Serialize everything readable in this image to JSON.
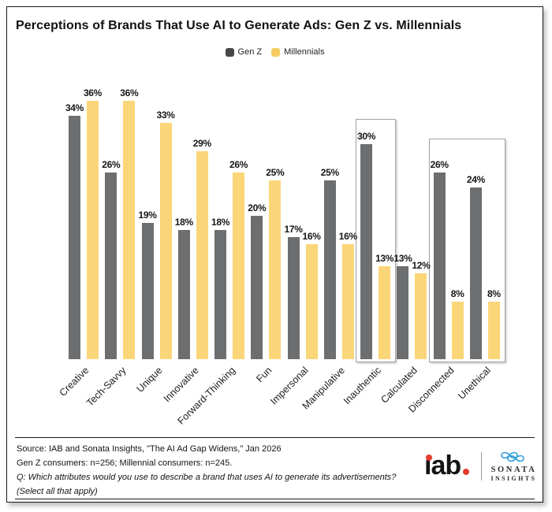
{
  "title": "Perceptions of Brands That Use AI to Generate Ads: Gen Z vs. Millennials",
  "legend": {
    "items": [
      {
        "label": "Gen Z",
        "swatch_color": "#47484a"
      },
      {
        "label": "Millennials",
        "swatch_color": "#f6cc63"
      }
    ]
  },
  "chart_data": {
    "type": "bar",
    "title": "Perceptions of Brands That Use AI to Generate Ads: Gen Z vs. Millennials",
    "categories": [
      "Creative",
      "Tech-Savvy",
      "Unique",
      "Innovative",
      "Forward-Thinking",
      "Fun",
      "Impersonal",
      "Manipulative",
      "Inauthentic",
      "Calculated",
      "Disconnected",
      "Unethical"
    ],
    "series": [
      {
        "name": "Gen Z",
        "color": "#6d6e70",
        "values": [
          34,
          26,
          19,
          18,
          18,
          20,
          17,
          25,
          30,
          13,
          26,
          24
        ]
      },
      {
        "name": "Millennials",
        "color": "#fbd679",
        "values": [
          36,
          36,
          33,
          29,
          26,
          25,
          16,
          16,
          13,
          12,
          8,
          8
        ]
      }
    ],
    "unit": "%",
    "value_labels": true,
    "grid": false,
    "axis_lines": false,
    "legend_position": "top-center",
    "ylim": [
      0,
      38
    ],
    "highlight_boxes": [
      {
        "categories": [
          "Inauthentic"
        ],
        "start_index": 8,
        "end_index": 8
      },
      {
        "categories": [
          "Disconnected",
          "Unethical"
        ],
        "start_index": 10,
        "end_index": 11
      }
    ]
  },
  "footer": {
    "lines": [
      {
        "text": "Source: IAB and Sonata Insights, \"The AI Ad Gap Widens,\" Jan 2026",
        "italic": false
      },
      {
        "text": "Gen Z consumers: n=256; Millennial consumers: n=245.",
        "italic": false
      },
      {
        "text": "Q: Which attributes would you use to describe a brand that uses AI to generate its advertisements?",
        "italic": true
      },
      {
        "text": "(Select all that apply)",
        "italic": true
      }
    ]
  },
  "logos": {
    "iab_text": "iab.",
    "sonata_line1": "SONATA",
    "sonata_line2": "INSIGHTS"
  }
}
